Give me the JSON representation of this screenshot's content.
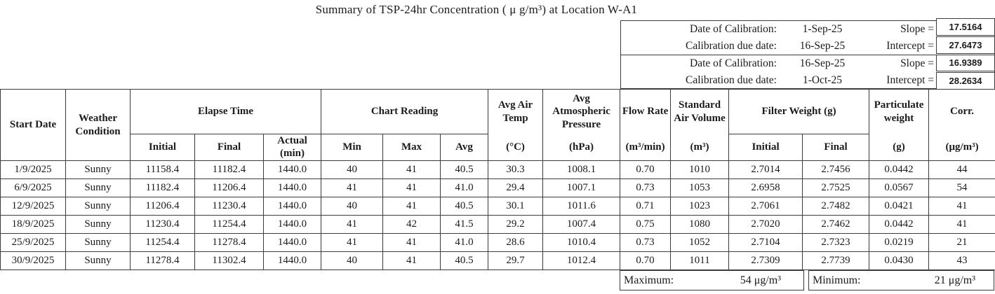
{
  "title": "Summary of TSP-24hr Concentration ( μ g/m³) at Location W-A1",
  "calibration": {
    "block1": {
      "row1": {
        "label": "Date of Calibration:",
        "date": "1-Sep-25",
        "param": "Slope =",
        "value": "17.5164"
      },
      "row2": {
        "label": "Calibration due date:",
        "date": "16-Sep-25",
        "param": "Intercept =",
        "value": "27.6473"
      }
    },
    "block2": {
      "row1": {
        "label": "Date of Calibration:",
        "date": "16-Sep-25",
        "param": "Slope =",
        "value": "16.9389"
      },
      "row2": {
        "label": "Calibration due date:",
        "date": "1-Oct-25",
        "param": "Intercept =",
        "value": "28.2634"
      }
    }
  },
  "table": {
    "headers": {
      "start_date": "Start Date",
      "weather_condition": "Weather Condition",
      "elapse_time": "Elapse Time",
      "chart_reading": "Chart Reading",
      "filter_weight": "Filter Weight (g)",
      "avg_air_temp": {
        "label": "Avg Air Temp",
        "unit": "(°C)"
      },
      "avg_atmospheric_pressure": {
        "label": "Avg Atmospheric Pressure",
        "unit": "(hPa)"
      },
      "flow_rate": {
        "label": "Flow Rate",
        "unit": "(m³/min)"
      },
      "standard_air_volume": {
        "label": "Standard Air Volume",
        "unit": "(m³)"
      },
      "particulate_weight": {
        "label": "Particulate weight",
        "unit": "(g)"
      },
      "corr": {
        "label": "Corr.",
        "unit": "(μg/m³)"
      },
      "sub": {
        "elapse_initial": "Initial",
        "elapse_final": "Final",
        "elapse_actual": "Actual (min)",
        "chart_min": "Min",
        "chart_max": "Max",
        "chart_avg": "Avg",
        "filter_initial": "Initial",
        "filter_final": "Final"
      }
    },
    "rows": [
      [
        "1/9/2025",
        "Sunny",
        "11158.4",
        "11182.4",
        "1440.0",
        "40",
        "41",
        "40.5",
        "30.3",
        "1008.1",
        "0.70",
        "1010",
        "2.7014",
        "2.7456",
        "0.0442",
        "44"
      ],
      [
        "6/9/2025",
        "Sunny",
        "11182.4",
        "11206.4",
        "1440.0",
        "41",
        "41",
        "41.0",
        "29.4",
        "1007.1",
        "0.73",
        "1053",
        "2.6958",
        "2.7525",
        "0.0567",
        "54"
      ],
      [
        "12/9/2025",
        "Sunny",
        "11206.4",
        "11230.4",
        "1440.0",
        "40",
        "41",
        "40.5",
        "30.1",
        "1011.6",
        "0.71",
        "1023",
        "2.7061",
        "2.7482",
        "0.0421",
        "41"
      ],
      [
        "18/9/2025",
        "Sunny",
        "11230.4",
        "11254.4",
        "1440.0",
        "41",
        "42",
        "41.5",
        "29.2",
        "1007.4",
        "0.75",
        "1080",
        "2.7020",
        "2.7462",
        "0.0442",
        "41"
      ],
      [
        "25/9/2025",
        "Sunny",
        "11254.4",
        "11278.4",
        "1440.0",
        "41",
        "41",
        "41.0",
        "28.6",
        "1010.4",
        "0.73",
        "1052",
        "2.7104",
        "2.7323",
        "0.0219",
        "21"
      ],
      [
        "30/9/2025",
        "Sunny",
        "11278.4",
        "11302.4",
        "1440.0",
        "40",
        "41",
        "40.5",
        "29.7",
        "1012.4",
        "0.70",
        "1011",
        "2.7309",
        "2.7739",
        "0.0430",
        "43"
      ]
    ]
  },
  "summary": {
    "maximum_label": "Maximum:",
    "maximum_value": "54 μg/m³",
    "minimum_label": "Minimum:",
    "minimum_value": "21 μg/m³"
  }
}
